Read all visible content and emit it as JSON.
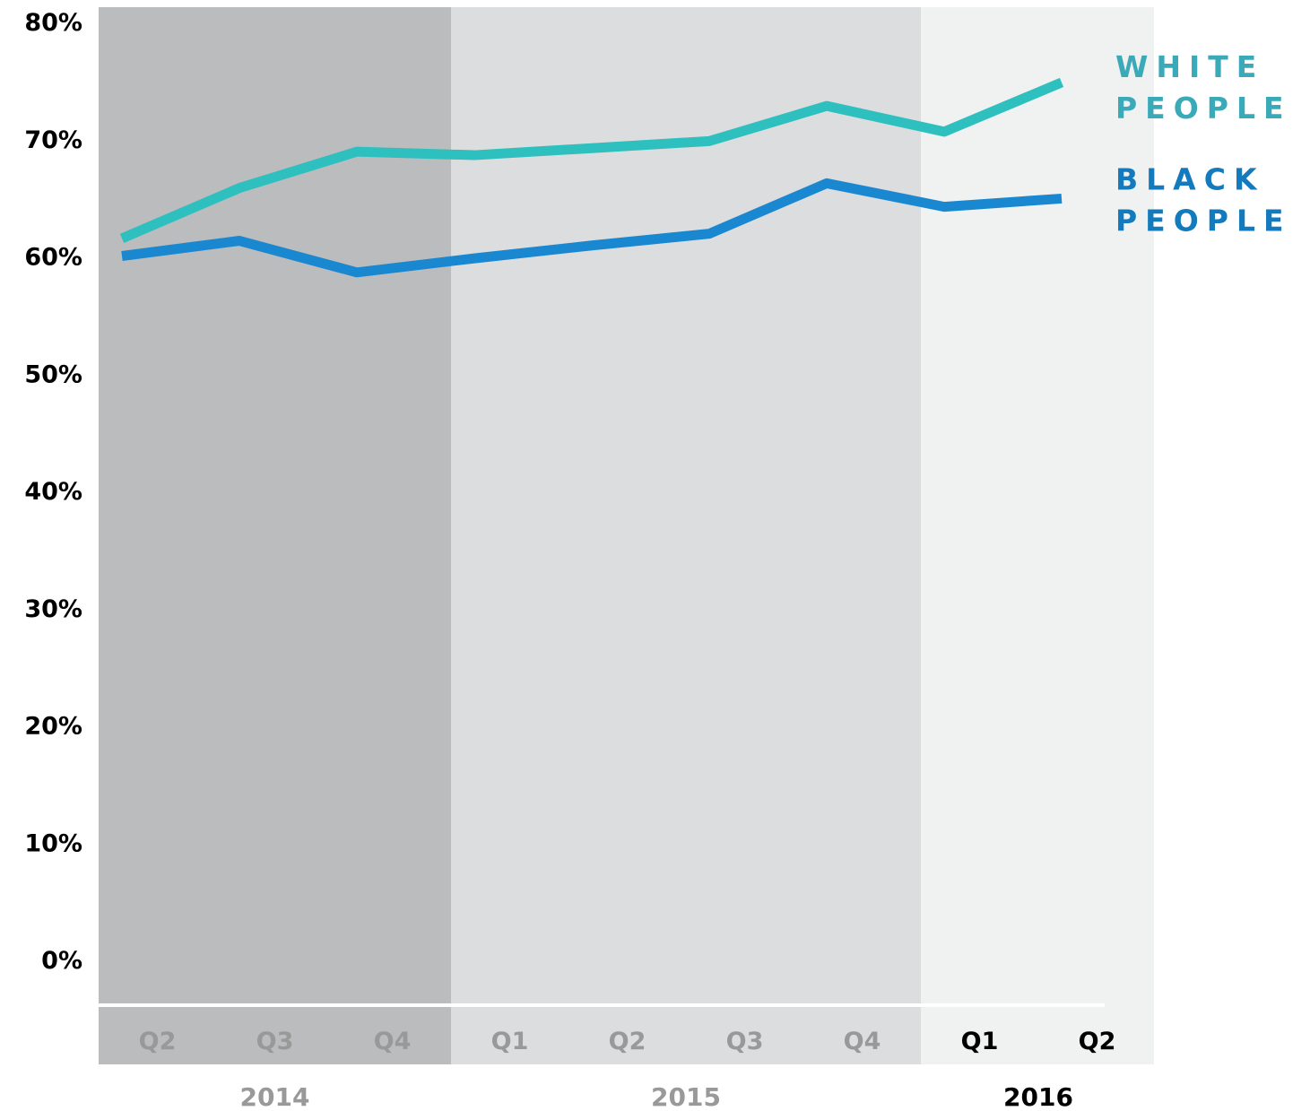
{
  "chart_data": {
    "type": "line",
    "title": "",
    "xlabel": "",
    "ylabel": "",
    "ylim": [
      0,
      80
    ],
    "yticks": [
      "0%",
      "10%",
      "20%",
      "30%",
      "40%",
      "50%",
      "60%",
      "70%",
      "80%"
    ],
    "categories": [
      "Q2",
      "Q3",
      "Q4",
      "Q1",
      "Q2",
      "Q3",
      "Q4",
      "Q1",
      "Q2"
    ],
    "years": [
      {
        "label": "2014",
        "quarters": 3,
        "shade": "#bbbcbe",
        "label_color": "#999999"
      },
      {
        "label": "2015",
        "quarters": 4,
        "shade": "#dcdddf",
        "label_color": "#999999"
      },
      {
        "label": "2016",
        "quarters": 2,
        "shade": "#f0f1f1",
        "label_color": "#000000"
      }
    ],
    "series": [
      {
        "name": "WHITE PEOPLE",
        "label_lines": [
          "WHITE",
          "PEOPLE"
        ],
        "color": "#2ebfbf",
        "label_color": "#3aa9b8",
        "values": [
          61.5,
          65.8,
          68.9,
          68.6,
          69.2,
          69.8,
          72.8,
          70.6,
          74.8
        ]
      },
      {
        "name": "BLACK PEOPLE",
        "label_lines": [
          "BLACK",
          "PEOPLE"
        ],
        "color": "#1a88d0",
        "label_color": "#127abd",
        "values": [
          60.0,
          61.3,
          58.6,
          59.8,
          60.9,
          61.9,
          66.2,
          64.2,
          64.9
        ]
      }
    ],
    "grid": false,
    "legend": "right, inline at line ends"
  }
}
